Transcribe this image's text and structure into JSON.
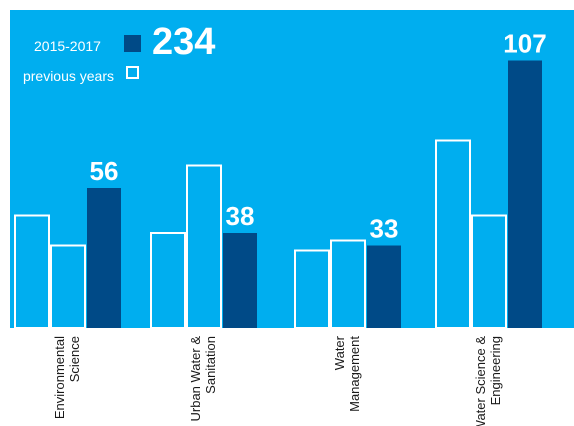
{
  "legend": {
    "current_label": "2015-2017",
    "current_total": "234",
    "previous_label": "previous years"
  },
  "colors": {
    "background": "#00aeef",
    "current_fill": "#004a87",
    "previous_fill": "#00aeef",
    "previous_stroke": "#ffffff",
    "label_text": "#ffffff",
    "category_text": "#1a1a1a"
  },
  "chart_data": {
    "type": "bar",
    "title": "",
    "xlabel": "",
    "ylabel": "",
    "categories": [
      [
        "Environmental",
        "Science"
      ],
      [
        "Urban Water &",
        "Sanitation"
      ],
      [
        "Water",
        "Management"
      ],
      [
        "Water Science &",
        "Engineering"
      ]
    ],
    "series": [
      {
        "name": "previous years",
        "style": "outline",
        "values": [
          [
            45,
            33
          ],
          [
            38,
            65
          ],
          [
            31,
            35
          ],
          [
            75,
            45
          ]
        ]
      },
      {
        "name": "2015-2017",
        "style": "filled",
        "values": [
          56,
          38,
          33,
          107
        ],
        "data_labels": [
          "56",
          "38",
          "33",
          "107"
        ]
      }
    ],
    "ylim": [
      0,
      115
    ],
    "grid": false,
    "legend_position": "top-left"
  }
}
